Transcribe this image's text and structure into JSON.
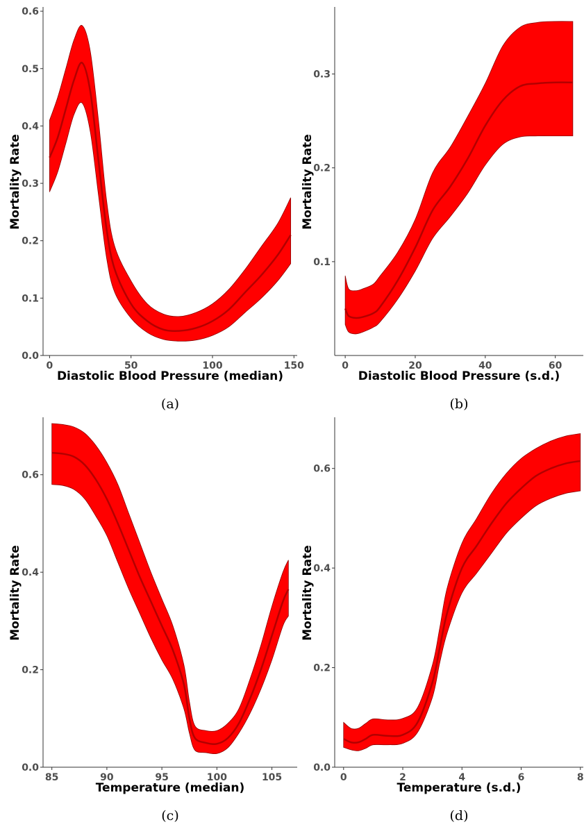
{
  "colors": {
    "band": "#ff0000",
    "line": "#b30000"
  },
  "chart_data": [
    {
      "panel": "(a)",
      "type": "area",
      "xlabel": "Diastolic Blood Pressure (median)",
      "ylabel": "Mortality Rate",
      "xlim": [
        -4,
        152
      ],
      "ylim": [
        0,
        0.605
      ],
      "xticks": [
        0,
        50,
        100,
        150
      ],
      "yticks": [
        0.0,
        0.1,
        0.2,
        0.3,
        0.4,
        0.5,
        0.6
      ],
      "ytick_labels": [
        "0.0",
        "0.1",
        "0.2",
        "0.3",
        "0.4",
        "0.5",
        "0.6"
      ],
      "x": [
        0,
        5,
        10,
        15,
        20,
        25,
        30,
        35,
        40,
        50,
        60,
        70,
        80,
        90,
        100,
        110,
        120,
        130,
        140,
        148
      ],
      "mean": [
        0.345,
        0.38,
        0.43,
        0.48,
        0.51,
        0.46,
        0.34,
        0.22,
        0.15,
        0.09,
        0.06,
        0.045,
        0.043,
        0.048,
        0.06,
        0.08,
        0.11,
        0.14,
        0.175,
        0.21
      ],
      "lower": [
        0.285,
        0.32,
        0.37,
        0.42,
        0.44,
        0.39,
        0.28,
        0.17,
        0.11,
        0.065,
        0.04,
        0.028,
        0.025,
        0.027,
        0.035,
        0.05,
        0.075,
        0.1,
        0.13,
        0.16
      ],
      "upper": [
        0.41,
        0.45,
        0.5,
        0.55,
        0.575,
        0.53,
        0.41,
        0.27,
        0.19,
        0.13,
        0.09,
        0.072,
        0.068,
        0.075,
        0.09,
        0.115,
        0.15,
        0.19,
        0.23,
        0.275
      ]
    },
    {
      "panel": "(b)",
      "type": "area",
      "xlabel": "Diastolic Blood Pressure (s.d.)",
      "ylabel": "Mortality Rate",
      "xlim": [
        -3,
        68
      ],
      "ylim": [
        0.0,
        0.37
      ],
      "xticks": [
        0,
        20,
        40,
        60
      ],
      "yticks": [
        0.1,
        0.2,
        0.3
      ],
      "ytick_labels": [
        "0.1",
        "0.2",
        "0.3"
      ],
      "x": [
        0,
        1,
        3,
        5,
        8,
        10,
        15,
        20,
        25,
        30,
        35,
        40,
        45,
        50,
        55,
        60,
        65
      ],
      "mean": [
        0.05,
        0.042,
        0.04,
        0.041,
        0.045,
        0.052,
        0.08,
        0.115,
        0.155,
        0.18,
        0.21,
        0.245,
        0.272,
        0.287,
        0.29,
        0.291,
        0.291
      ],
      "lower": [
        0.033,
        0.025,
        0.023,
        0.025,
        0.03,
        0.036,
        0.06,
        0.09,
        0.125,
        0.148,
        0.173,
        0.203,
        0.225,
        0.233,
        0.234,
        0.234,
        0.234
      ],
      "upper": [
        0.085,
        0.071,
        0.069,
        0.071,
        0.076,
        0.085,
        0.11,
        0.145,
        0.195,
        0.222,
        0.255,
        0.29,
        0.33,
        0.35,
        0.355,
        0.356,
        0.356
      ]
    },
    {
      "panel": "(c)",
      "type": "area",
      "xlabel": "Temperature (median)",
      "ylabel": "Mortality Rate",
      "xlim": [
        84.2,
        107.3
      ],
      "ylim": [
        0.0,
        0.715
      ],
      "xticks": [
        85,
        90,
        95,
        100,
        105
      ],
      "yticks": [
        0.0,
        0.2,
        0.4,
        0.6
      ],
      "ytick_labels": [
        "0.0",
        "0.2",
        "0.4",
        "0.6"
      ],
      "x": [
        85,
        86,
        87,
        88,
        89,
        90,
        91,
        92,
        93,
        94,
        95,
        96,
        97,
        97.5,
        98,
        99,
        100,
        101,
        102,
        103,
        104,
        105,
        106,
        106.5
      ],
      "mean": [
        0.645,
        0.643,
        0.637,
        0.62,
        0.59,
        0.55,
        0.5,
        0.445,
        0.39,
        0.34,
        0.29,
        0.24,
        0.17,
        0.1,
        0.06,
        0.05,
        0.048,
        0.06,
        0.09,
        0.14,
        0.2,
        0.27,
        0.34,
        0.365
      ],
      "lower": [
        0.58,
        0.578,
        0.57,
        0.55,
        0.515,
        0.475,
        0.42,
        0.365,
        0.315,
        0.265,
        0.22,
        0.18,
        0.12,
        0.07,
        0.035,
        0.03,
        0.028,
        0.04,
        0.07,
        0.11,
        0.16,
        0.22,
        0.29,
        0.31
      ],
      "upper": [
        0.705,
        0.703,
        0.698,
        0.685,
        0.66,
        0.625,
        0.58,
        0.52,
        0.46,
        0.4,
        0.345,
        0.29,
        0.21,
        0.135,
        0.085,
        0.075,
        0.075,
        0.09,
        0.12,
        0.18,
        0.25,
        0.33,
        0.4,
        0.425
      ]
    },
    {
      "panel": "(d)",
      "type": "area",
      "xlabel": "Temperature (s.d.)",
      "ylabel": "Mortality Rate",
      "xlim": [
        -0.3,
        8.1
      ],
      "ylim": [
        0.0,
        0.7
      ],
      "xticks": [
        0,
        2,
        4,
        6,
        8
      ],
      "yticks": [
        0.0,
        0.2,
        0.4,
        0.6
      ],
      "ytick_labels": [
        "0.0",
        "0.2",
        "0.4",
        "0.6"
      ],
      "x": [
        0,
        0.25,
        0.5,
        0.75,
        1,
        1.5,
        2,
        2.5,
        3,
        3.25,
        3.5,
        4,
        4.5,
        5,
        5.5,
        6,
        6.5,
        7,
        7.5,
        8
      ],
      "mean": [
        0.057,
        0.05,
        0.05,
        0.057,
        0.065,
        0.063,
        0.065,
        0.09,
        0.17,
        0.24,
        0.31,
        0.4,
        0.445,
        0.49,
        0.53,
        0.56,
        0.585,
        0.6,
        0.61,
        0.615
      ],
      "lower": [
        0.04,
        0.035,
        0.033,
        0.038,
        0.045,
        0.045,
        0.048,
        0.07,
        0.14,
        0.21,
        0.27,
        0.35,
        0.39,
        0.43,
        0.47,
        0.5,
        0.525,
        0.54,
        0.55,
        0.555
      ],
      "upper": [
        0.09,
        0.078,
        0.078,
        0.088,
        0.097,
        0.095,
        0.098,
        0.12,
        0.205,
        0.28,
        0.36,
        0.45,
        0.5,
        0.55,
        0.59,
        0.62,
        0.64,
        0.655,
        0.665,
        0.67
      ]
    }
  ]
}
